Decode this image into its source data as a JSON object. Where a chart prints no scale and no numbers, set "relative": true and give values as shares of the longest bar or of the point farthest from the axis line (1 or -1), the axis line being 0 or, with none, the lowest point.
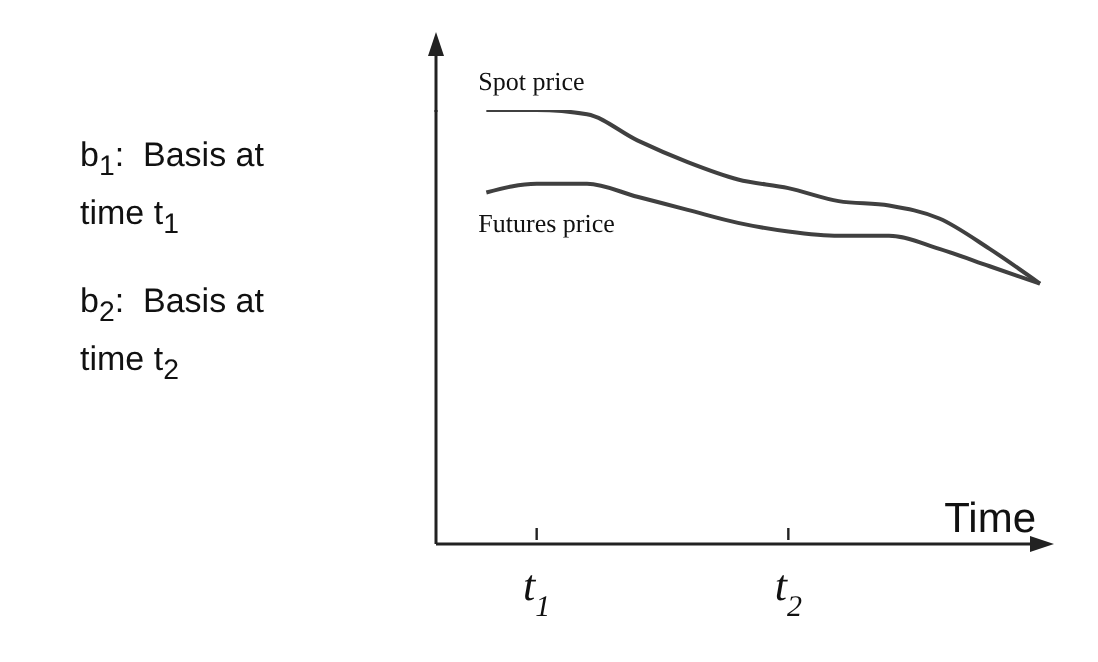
{
  "chart_data": {
    "type": "line",
    "relative": true,
    "xlabel": "Time",
    "categories": [
      null,
      null,
      "t$_{1}$",
      null,
      null,
      null,
      null,
      "t$_{2}$",
      null,
      null,
      null,
      null,
      null
    ],
    "series": [
      {
        "name": "Spot price",
        "color": "#404040",
        "values": [
          null,
          1.0,
          1.0,
          0.99,
          0.93,
          0.88,
          0.84,
          0.82,
          0.79,
          0.78,
          0.75,
          0.68,
          0.6
        ]
      },
      {
        "name": "Futures price",
        "color": "#404040",
        "values": [
          null,
          0.81,
          0.83,
          0.83,
          0.8,
          0.77,
          0.74,
          0.72,
          0.71,
          0.71,
          0.68,
          0.64,
          0.6
        ]
      }
    ],
    "annotations": [
      "b$_{1}$:  Basis at time t$_{1}$",
      "b$_{2}$:  Basis at time t$_{2}$"
    ]
  }
}
